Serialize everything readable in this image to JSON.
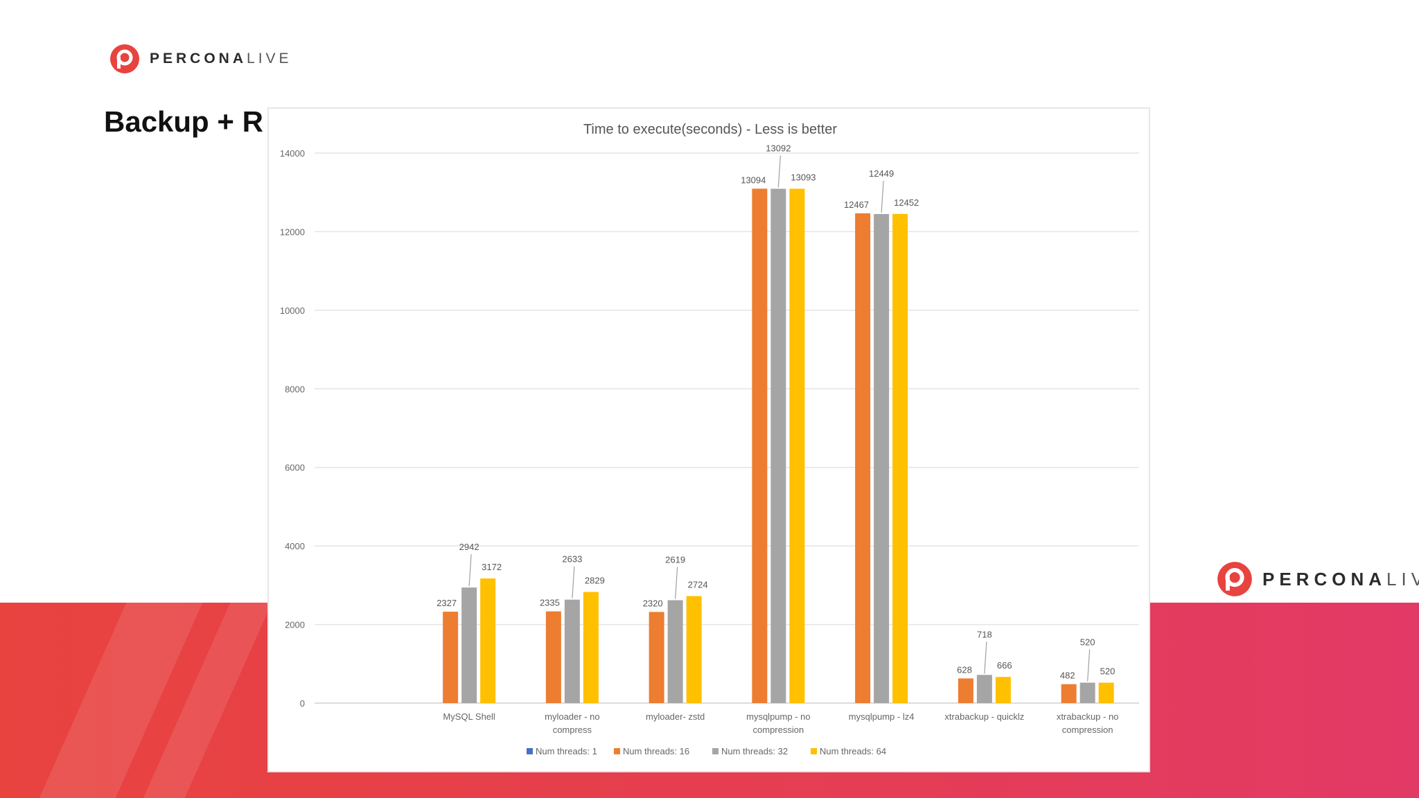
{
  "header": {
    "brand_strong": "PERCONA",
    "brand_light": "LIVE",
    "logo_icon": "percona-p-icon",
    "slide_title": "Backup + R"
  },
  "footer_brand": {
    "brand_strong": "PERCONA",
    "brand_light": "LIVE"
  },
  "colors": {
    "band": "#e4404f",
    "accent": "#e8433f",
    "series": [
      "#4472c4",
      "#ed7d31",
      "#a5a5a5",
      "#ffc000"
    ]
  },
  "chart_data": {
    "type": "bar",
    "title": "Time to execute(seconds)  - Less is better",
    "xlabel": "",
    "ylabel": "",
    "ylim": [
      0,
      14000
    ],
    "yticks": [
      0,
      2000,
      4000,
      6000,
      8000,
      10000,
      12000,
      14000
    ],
    "grid": true,
    "legend_position": "bottom",
    "categories": [
      [
        "",
        ""
      ],
      [
        "MySQL Shell",
        ""
      ],
      [
        "myloader - no",
        "compress"
      ],
      [
        "myloader- zstd",
        ""
      ],
      [
        "mysqlpump - no",
        "compression"
      ],
      [
        "mysqlpump - lz4",
        ""
      ],
      [
        "xtrabackup - quicklz",
        ""
      ],
      [
        "xtrabackup - no",
        "compression"
      ]
    ],
    "series": [
      {
        "name": "Num threads: 1",
        "values": [
          null,
          null,
          null,
          null,
          null,
          null,
          null,
          null
        ]
      },
      {
        "name": "Num threads: 16",
        "values": [
          null,
          2327,
          2335,
          2320,
          13094,
          12467,
          628,
          482
        ]
      },
      {
        "name": "Num threads: 32",
        "values": [
          null,
          2942,
          2633,
          2619,
          13092,
          12449,
          718,
          520
        ]
      },
      {
        "name": "Num threads: 64",
        "values": [
          null,
          3172,
          2829,
          2724,
          13093,
          12452,
          666,
          520
        ]
      }
    ]
  }
}
